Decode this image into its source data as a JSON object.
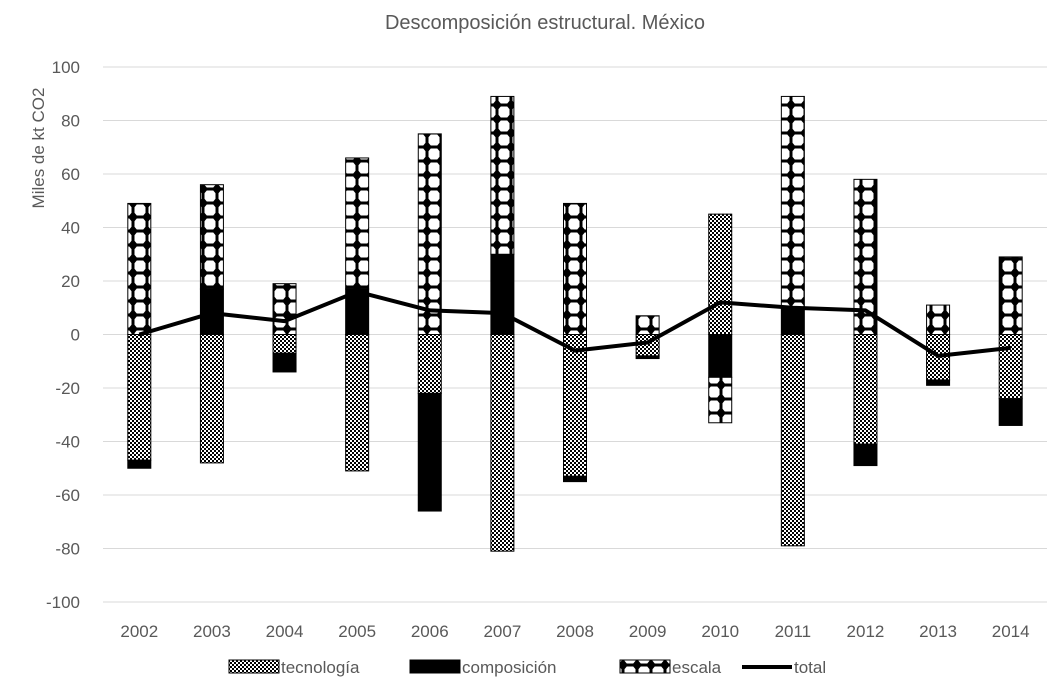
{
  "chart_data": {
    "type": "bar",
    "stacked": true,
    "title": "Descomposición estructural. México",
    "xlabel": "",
    "ylabel": "Miles de kt CO2",
    "ylim": [
      -100,
      100
    ],
    "yticks": [
      -100,
      -80,
      -60,
      -40,
      -20,
      0,
      20,
      40,
      60,
      80,
      100
    ],
    "grid": true,
    "legend_position": "bottom",
    "categories": [
      "2002",
      "2003",
      "2004",
      "2005",
      "2006",
      "2007",
      "2008",
      "2009",
      "2010",
      "2011",
      "2012",
      "2013",
      "2014"
    ],
    "series": [
      {
        "name": "tecnología",
        "kind": "bar",
        "pattern": "checker",
        "values": [
          -47,
          -48,
          -7,
          -51,
          -22,
          -81,
          -53,
          -8,
          45,
          -79,
          -41,
          -17,
          -24
        ]
      },
      {
        "name": "composición",
        "kind": "bar",
        "pattern": "solid",
        "values": [
          -3,
          17,
          -7,
          17,
          -44,
          30,
          -2,
          -1,
          -16,
          10,
          -8,
          -2,
          -10
        ]
      },
      {
        "name": "escala",
        "kind": "bar",
        "pattern": "diamond",
        "values": [
          49,
          39,
          19,
          49,
          75,
          59,
          49,
          7,
          -17,
          79,
          58,
          11,
          29
        ]
      },
      {
        "name": "total",
        "kind": "line",
        "color": "#000000",
        "values": [
          0,
          8,
          5,
          16,
          9,
          8,
          -6,
          -3,
          12,
          10,
          9,
          -8,
          -5
        ]
      }
    ]
  }
}
